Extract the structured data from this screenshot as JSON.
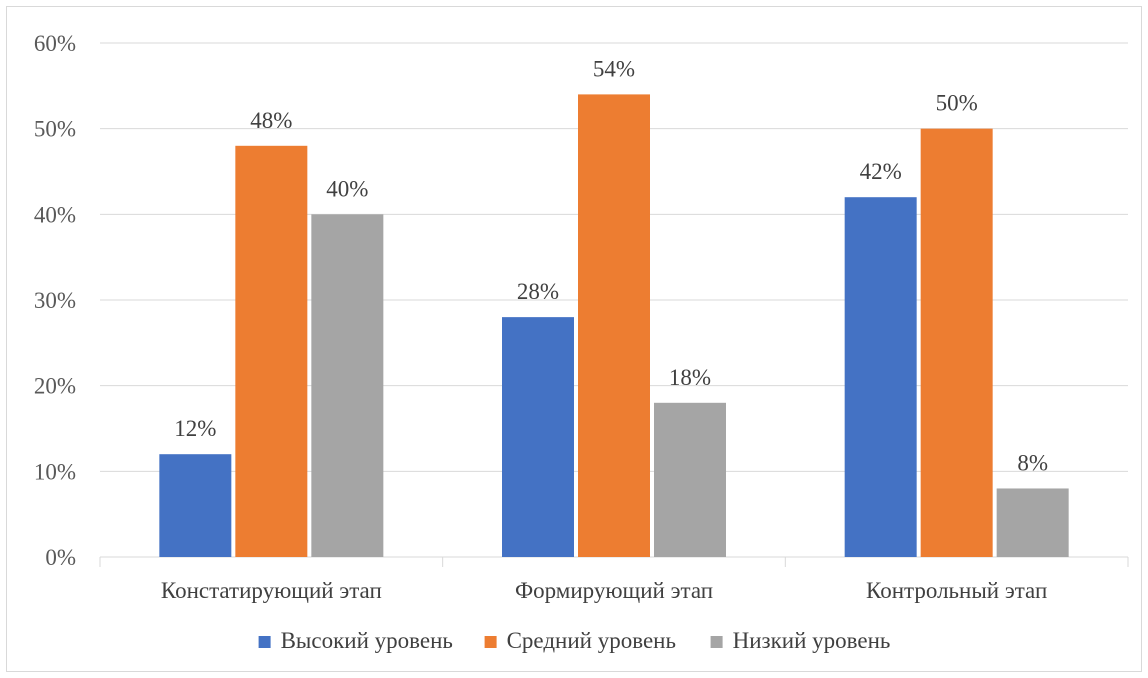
{
  "chart_data": {
    "type": "bar",
    "categories": [
      "Констатирующий этап",
      "Формирующий этап",
      "Контрольный этап"
    ],
    "series": [
      {
        "name": "Высокий уровень",
        "color": "#4472c4",
        "values": [
          12,
          28,
          42
        ],
        "labels": [
          "12%",
          "28%",
          "42%"
        ]
      },
      {
        "name": "Средний уровень",
        "color": "#ed7d31",
        "values": [
          48,
          54,
          50
        ],
        "labels": [
          "48%",
          "54%",
          "50%"
        ]
      },
      {
        "name": "Низкий уровень",
        "color": "#a5a5a5",
        "values": [
          40,
          18,
          8
        ],
        "labels": [
          "40%",
          "18%",
          "8%"
        ]
      }
    ],
    "y_ticks": [
      "0%",
      "10%",
      "20%",
      "30%",
      "40%",
      "50%",
      "60%"
    ],
    "ylim": [
      0,
      60
    ],
    "grid": true,
    "legend_position": "bottom",
    "title": "",
    "xlabel": "",
    "ylabel": ""
  }
}
